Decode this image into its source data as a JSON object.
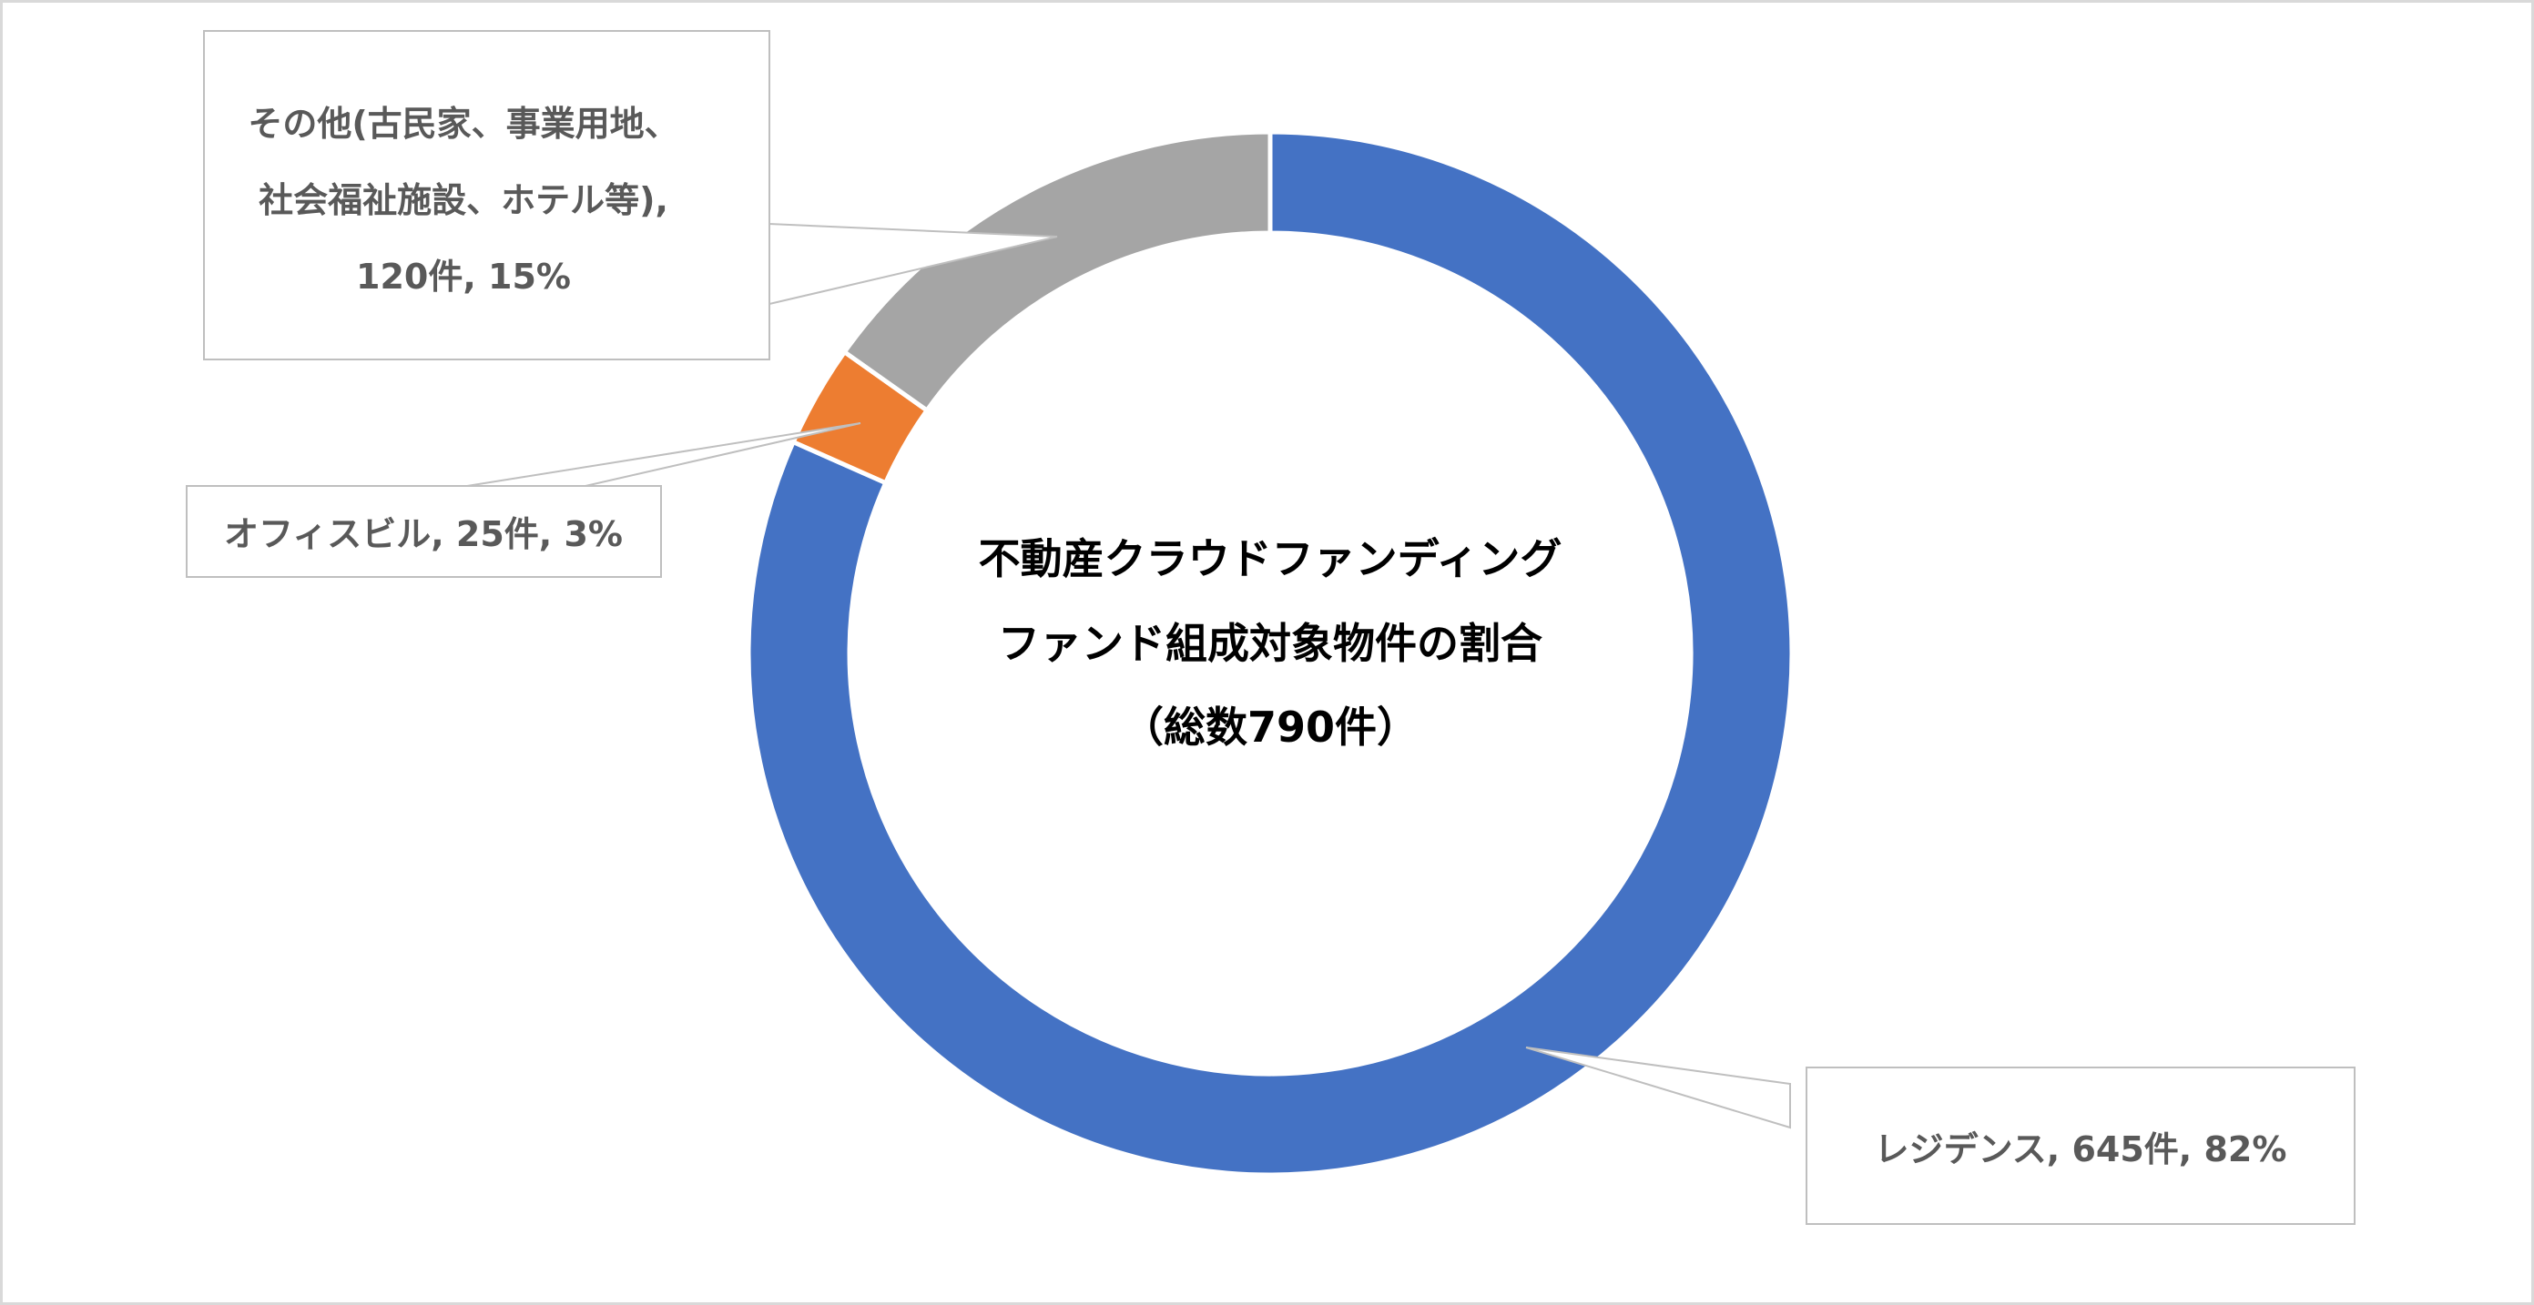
{
  "chart_data": {
    "type": "pie",
    "variant": "doughnut",
    "title_lines": [
      "不動産クラウドファンディング",
      "ファンド組成対象物件の割合",
      "（総数790件）"
    ],
    "total": 790,
    "total_unit": "件",
    "legend": "none",
    "slices": [
      {
        "name": "レジデンス",
        "value": 645,
        "percent": 82,
        "color": "#4472C4",
        "label_lines": [
          "レジデンス, 645件, 82%"
        ]
      },
      {
        "name": "オフィスビル",
        "value": 25,
        "percent": 3,
        "color": "#ED7D31",
        "label_lines": [
          "オフィスビル, 25件, 3%"
        ]
      },
      {
        "name": "その他(古民家、事業用地、社会福祉施設、ホテル等)",
        "value": 120,
        "percent": 15,
        "color": "#A5A5A5",
        "label_lines": [
          "その他(古民家、事業用地、",
          "社会福祉施設、ホテル等),",
          "120件, 15%"
        ]
      }
    ]
  }
}
